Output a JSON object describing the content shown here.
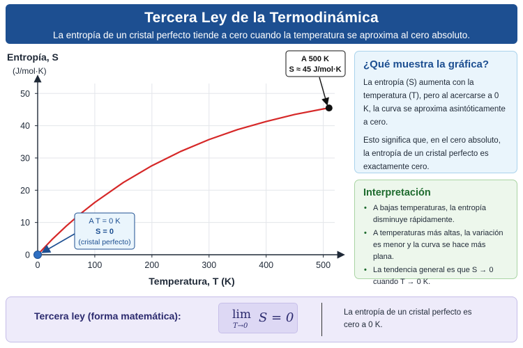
{
  "header": {
    "title": "Tercera Ley de la Termodinámica",
    "subtitle": "La entropía de un cristal perfecto tiende a cero cuando la temperatura se aproxima al cero absoluto."
  },
  "chart_data": {
    "type": "line",
    "xlabel": "Temperatura, T (K)",
    "ylabel": "Entropía, S",
    "ylabel_units": "(J/mol·K)",
    "xlim": [
      0,
      520
    ],
    "ylim": [
      0,
      52
    ],
    "x_ticks": [
      0,
      100,
      200,
      300,
      400,
      500
    ],
    "y_ticks": [
      0,
      10,
      20,
      30,
      40,
      50
    ],
    "grid": true,
    "line_color": "#d62828",
    "series": [
      {
        "x": [
          0,
          10,
          25,
          50,
          75,
          100,
          150,
          200,
          250,
          300,
          350,
          400,
          450,
          500,
          510
        ],
        "values": [
          0,
          1.9,
          4.7,
          8.9,
          12.7,
          16.2,
          22.4,
          27.6,
          32.0,
          35.7,
          38.8,
          41.3,
          43.5,
          45.2,
          45.5
        ]
      }
    ],
    "annotations": [
      {
        "lines": [
          "A T = 0 K",
          "S = 0",
          "(cristal perfecto)"
        ],
        "x": 0,
        "y": 0,
        "color": "#1d4f91"
      },
      {
        "lines": [
          "A 500 K",
          "S ≈ 45 J/mol·K"
        ],
        "x": 510,
        "y": 45.5,
        "color": "#111111"
      }
    ]
  },
  "info": {
    "title": "¿Qué muestra la gráfica?",
    "paragraphs": [
      "La entropía (S) aumenta con la temperatura (T), pero al acercarse a 0 K, la curva se aproxima asintóticamente a cero.",
      "Esto significa que, en el cero absoluto, la entropía de un cristal perfecto es exactamente cero."
    ]
  },
  "interpretation": {
    "title": "Interpretación",
    "bullets": [
      "A bajas temperaturas, la entropía disminuye rápidamente.",
      "A temperaturas más altas, la variación es menor y la curva se hace más plana.",
      "La tendencia general es que S → 0 cuando T → 0 K."
    ]
  },
  "formula": {
    "label": "Tercera ley (forma matemática):",
    "lim": "lim",
    "lim_sub": "T→0",
    "expr": "S = 0",
    "note": "La entropía de un cristal perfecto es cero a 0 K."
  }
}
